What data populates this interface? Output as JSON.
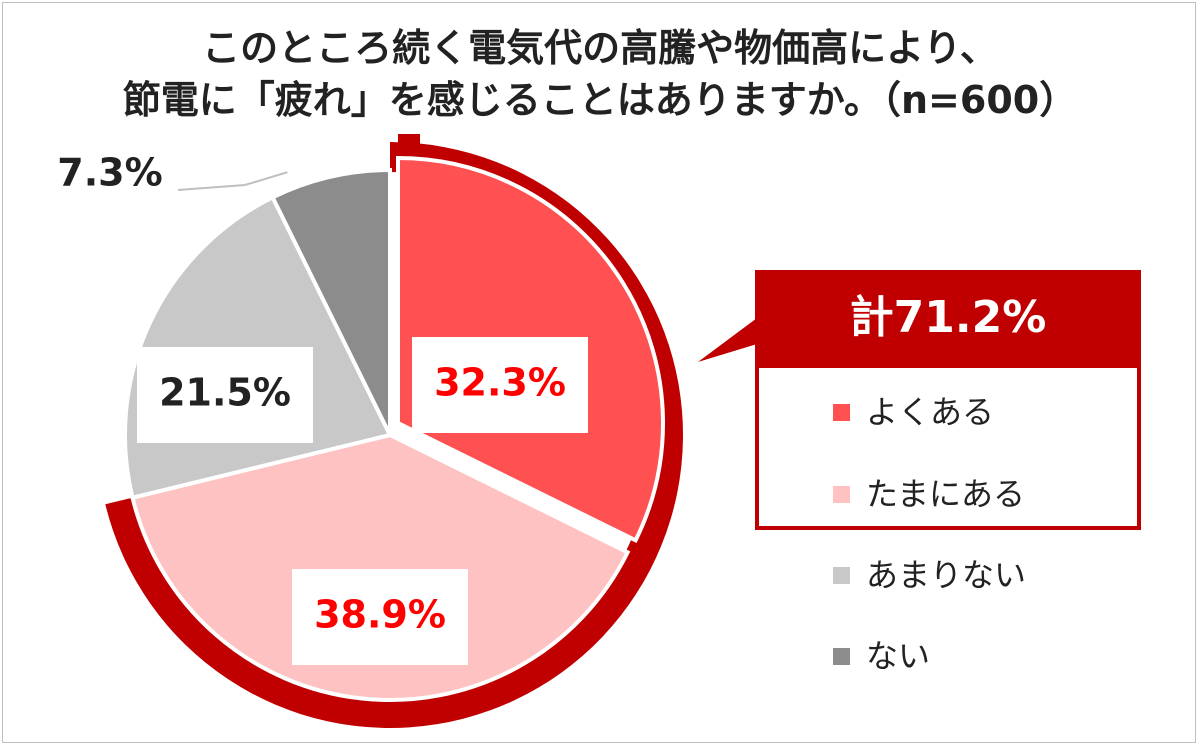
{
  "title_line1": "このところ続く電気代の高騰や物価高により、",
  "title_line2": "節電に「疲れ」を感じることはありますか。（n=600）",
  "chart_data": {
    "type": "pie",
    "categories": [
      "よくある",
      "たまにある",
      "あまりない",
      "ない"
    ],
    "values": [
      32.3,
      38.9,
      21.5,
      7.3
    ],
    "labels": [
      "32.3%",
      "38.9%",
      "21.5%",
      "7.3%"
    ],
    "colors": [
      "#ff5052",
      "#ffc2c2",
      "#c8c8c8",
      "#8c8c8c"
    ],
    "label_colors": [
      "#ff0000",
      "#ff0000",
      "#222222",
      "#222222"
    ],
    "highlight_color": "#c00000",
    "total_label": "計71.2%",
    "legend_placement": "right"
  }
}
